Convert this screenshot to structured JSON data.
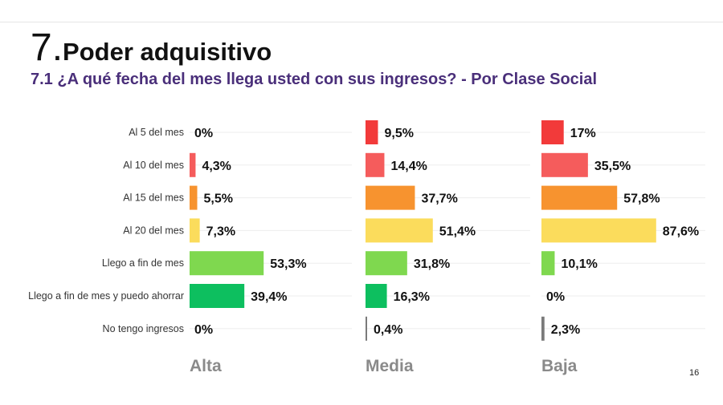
{
  "header": {
    "title_number": "7.",
    "title_text": "Poder adquisitivo",
    "subtitle": "7.1 ¿A qué fecha del mes llega usted con sus ingresos?  - Por Clase Social"
  },
  "page_number": "16",
  "chart_data": {
    "type": "bar",
    "orientation": "horizontal",
    "title": "7.1 ¿A qué fecha del mes llega usted con sus ingresos?  - Por Clase Social",
    "categories": [
      "Al 5 del mes",
      "Al 10 del mes",
      "Al 15 del mes",
      "Al 20 del mes",
      "Llego a fin de mes",
      "Llego a fin de mes y puedo ahorrar",
      "No tengo ingresos"
    ],
    "category_colors": [
      "#f23a3a",
      "#f55c5c",
      "#f7932f",
      "#fbdc5c",
      "#7fd84f",
      "#0dbf5f",
      "#7a7a7a"
    ],
    "xlim": [
      0,
      100
    ],
    "grid": false,
    "series": [
      {
        "name": "Alta",
        "values": [
          0,
          4.3,
          5.5,
          7.3,
          53.3,
          39.4,
          0
        ],
        "labels": [
          "0%",
          "4,3%",
          "5,5%",
          "7,3%",
          "53,3%",
          "39,4%",
          "0%"
        ]
      },
      {
        "name": "Media",
        "values": [
          9.5,
          14.4,
          37.7,
          51.4,
          31.8,
          16.3,
          0.4
        ],
        "labels": [
          "9,5%",
          "14,4%",
          "37,7%",
          "51,4%",
          "31,8%",
          "16,3%",
          "0,4%"
        ]
      },
      {
        "name": "Baja",
        "values": [
          17,
          35.5,
          57.8,
          87.6,
          10.1,
          0,
          2.3
        ],
        "labels": [
          "17%",
          "35,5%",
          "57,8%",
          "87,6%",
          "10,1%",
          "0%",
          "2,3%"
        ]
      }
    ]
  }
}
